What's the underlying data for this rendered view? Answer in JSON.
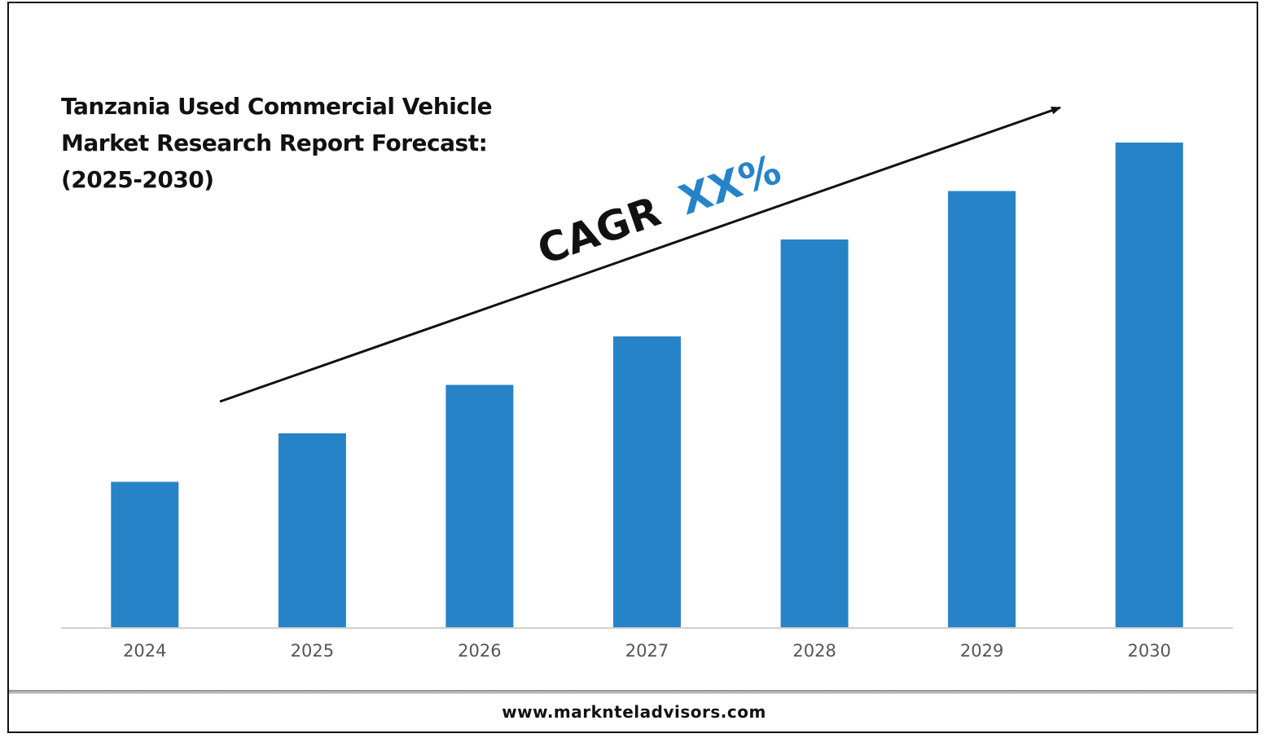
{
  "chart_data": {
    "type": "bar",
    "title_lines": [
      "Tanzania Used Commercial Vehicle",
      "Market Research Report Forecast:",
      "(2025-2030)"
    ],
    "categories": [
      "2024",
      "2025",
      "2026",
      "2027",
      "2028",
      "2029",
      "2030"
    ],
    "values": [
      30,
      40,
      50,
      60,
      80,
      90,
      100
    ],
    "bar_color": "#2783c8",
    "grid": false,
    "annotation": {
      "prefix": "CAGR",
      "value": "XX%",
      "prefix_color": "#111111",
      "value_color": "#2783c8"
    }
  },
  "footer": {
    "url": "www.marknteladvisors.com"
  }
}
